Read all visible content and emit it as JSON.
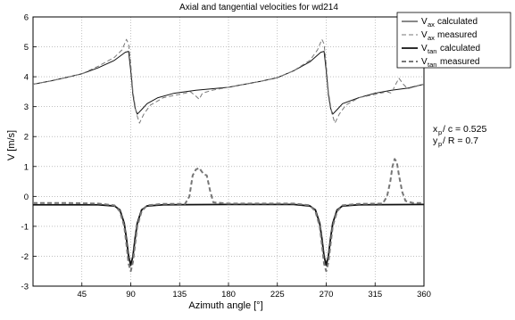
{
  "chart_data": {
    "type": "line",
    "title": "Axial and tangential velocities for wd214",
    "xlabel": "Azimuth angle [°]",
    "ylabel": "V [m/s]",
    "xlim": [
      0,
      360
    ],
    "ylim": [
      -3,
      6
    ],
    "xticks": [
      "45",
      "90",
      "135",
      "180",
      "225",
      "270",
      "315",
      "360"
    ],
    "yticks": [
      "-3",
      "-2",
      "-1",
      "0",
      "1",
      "2",
      "3",
      "4",
      "5",
      "6"
    ],
    "grid": true,
    "legend_position": "top-right",
    "colors": {
      "calculated": "#111111",
      "measured": "#777777"
    },
    "series": [
      {
        "name_main": "V",
        "name_sub": "ax",
        "name_suffix": "calculated",
        "style": "solid-thin",
        "points": [
          [
            0,
            3.75
          ],
          [
            15,
            3.85
          ],
          [
            30,
            3.97
          ],
          [
            45,
            4.1
          ],
          [
            60,
            4.3
          ],
          [
            75,
            4.55
          ],
          [
            85,
            4.82
          ],
          [
            88,
            4.85
          ],
          [
            90,
            4.2
          ],
          [
            92,
            3.4
          ],
          [
            94,
            2.95
          ],
          [
            96,
            2.75
          ],
          [
            100,
            2.9
          ],
          [
            105,
            3.1
          ],
          [
            115,
            3.3
          ],
          [
            130,
            3.45
          ],
          [
            150,
            3.55
          ],
          [
            180,
            3.65
          ],
          [
            210,
            3.85
          ],
          [
            225,
            3.97
          ],
          [
            240,
            4.2
          ],
          [
            255,
            4.5
          ],
          [
            265,
            4.82
          ],
          [
            268,
            4.85
          ],
          [
            270,
            4.2
          ],
          [
            272,
            3.4
          ],
          [
            274,
            2.95
          ],
          [
            276,
            2.75
          ],
          [
            280,
            2.9
          ],
          [
            285,
            3.1
          ],
          [
            300,
            3.3
          ],
          [
            315,
            3.45
          ],
          [
            330,
            3.55
          ],
          [
            345,
            3.62
          ],
          [
            360,
            3.75
          ]
        ]
      },
      {
        "name_main": "V",
        "name_sub": "ax",
        "name_suffix": "measured",
        "style": "dashed-thin",
        "points": [
          [
            0,
            3.75
          ],
          [
            15,
            3.85
          ],
          [
            30,
            3.97
          ],
          [
            45,
            4.1
          ],
          [
            60,
            4.35
          ],
          [
            75,
            4.65
          ],
          [
            82,
            4.9
          ],
          [
            86,
            5.25
          ],
          [
            88,
            5.1
          ],
          [
            90,
            4.4
          ],
          [
            92,
            3.5
          ],
          [
            95,
            2.8
          ],
          [
            98,
            2.45
          ],
          [
            102,
            2.75
          ],
          [
            108,
            3.05
          ],
          [
            120,
            3.3
          ],
          [
            140,
            3.45
          ],
          [
            145,
            3.5
          ],
          [
            150,
            3.35
          ],
          [
            153,
            3.25
          ],
          [
            156,
            3.45
          ],
          [
            165,
            3.55
          ],
          [
            180,
            3.65
          ],
          [
            210,
            3.85
          ],
          [
            225,
            3.97
          ],
          [
            240,
            4.2
          ],
          [
            255,
            4.55
          ],
          [
            262,
            4.9
          ],
          [
            266,
            5.25
          ],
          [
            268,
            5.1
          ],
          [
            270,
            4.4
          ],
          [
            272,
            3.5
          ],
          [
            275,
            2.8
          ],
          [
            278,
            2.45
          ],
          [
            282,
            2.75
          ],
          [
            288,
            3.05
          ],
          [
            300,
            3.3
          ],
          [
            320,
            3.45
          ],
          [
            326,
            3.5
          ],
          [
            330,
            3.45
          ],
          [
            334,
            3.75
          ],
          [
            337,
            3.95
          ],
          [
            341,
            3.75
          ],
          [
            345,
            3.6
          ],
          [
            360,
            3.75
          ]
        ]
      },
      {
        "name_main": "V",
        "name_sub": "tan",
        "name_suffix": "calculated",
        "style": "solid-thick",
        "points": [
          [
            0,
            -0.28
          ],
          [
            30,
            -0.28
          ],
          [
            60,
            -0.28
          ],
          [
            75,
            -0.32
          ],
          [
            80,
            -0.45
          ],
          [
            84,
            -0.9
          ],
          [
            86,
            -1.4
          ],
          [
            88,
            -2.0
          ],
          [
            90,
            -2.3
          ],
          [
            92,
            -2.0
          ],
          [
            94,
            -1.4
          ],
          [
            96,
            -0.9
          ],
          [
            100,
            -0.45
          ],
          [
            105,
            -0.32
          ],
          [
            120,
            -0.28
          ],
          [
            180,
            -0.27
          ],
          [
            240,
            -0.27
          ],
          [
            255,
            -0.32
          ],
          [
            260,
            -0.45
          ],
          [
            264,
            -0.9
          ],
          [
            266,
            -1.4
          ],
          [
            268,
            -2.0
          ],
          [
            270,
            -2.3
          ],
          [
            272,
            -2.0
          ],
          [
            274,
            -1.4
          ],
          [
            276,
            -0.9
          ],
          [
            280,
            -0.45
          ],
          [
            285,
            -0.32
          ],
          [
            300,
            -0.28
          ],
          [
            360,
            -0.27
          ]
        ]
      },
      {
        "name_main": "V",
        "name_sub": "tan",
        "name_suffix": "measured",
        "style": "dashed-thick",
        "points": [
          [
            0,
            -0.22
          ],
          [
            30,
            -0.22
          ],
          [
            60,
            -0.24
          ],
          [
            75,
            -0.3
          ],
          [
            80,
            -0.5
          ],
          [
            84,
            -1.0
          ],
          [
            86,
            -1.6
          ],
          [
            88,
            -2.25
          ],
          [
            90,
            -2.5
          ],
          [
            92,
            -2.2
          ],
          [
            94,
            -1.6
          ],
          [
            96,
            -1.0
          ],
          [
            100,
            -0.5
          ],
          [
            105,
            -0.3
          ],
          [
            120,
            -0.25
          ],
          [
            140,
            -0.25
          ],
          [
            144,
            0.0
          ],
          [
            147,
            0.7
          ],
          [
            150,
            0.9
          ],
          [
            153,
            0.95
          ],
          [
            155,
            0.85
          ],
          [
            157,
            0.75
          ],
          [
            160,
            0.7
          ],
          [
            163,
            0.2
          ],
          [
            166,
            -0.2
          ],
          [
            180,
            -0.24
          ],
          [
            240,
            -0.24
          ],
          [
            255,
            -0.3
          ],
          [
            260,
            -0.5
          ],
          [
            264,
            -1.0
          ],
          [
            266,
            -1.6
          ],
          [
            268,
            -2.25
          ],
          [
            270,
            -2.5
          ],
          [
            272,
            -2.2
          ],
          [
            274,
            -1.6
          ],
          [
            276,
            -1.0
          ],
          [
            280,
            -0.5
          ],
          [
            285,
            -0.3
          ],
          [
            300,
            -0.25
          ],
          [
            322,
            -0.24
          ],
          [
            326,
            0.0
          ],
          [
            329,
            0.5
          ],
          [
            331,
            1.0
          ],
          [
            333,
            1.25
          ],
          [
            335,
            1.15
          ],
          [
            337,
            0.7
          ],
          [
            340,
            0.15
          ],
          [
            343,
            -0.15
          ],
          [
            350,
            -0.22
          ],
          [
            360,
            -0.22
          ]
        ]
      }
    ],
    "annotations": [
      {
        "main": "x",
        "sub": "p",
        "text": " / c  = 0.525"
      },
      {
        "main": "y",
        "sub": "p",
        "text": " / R = 0.7"
      }
    ]
  }
}
